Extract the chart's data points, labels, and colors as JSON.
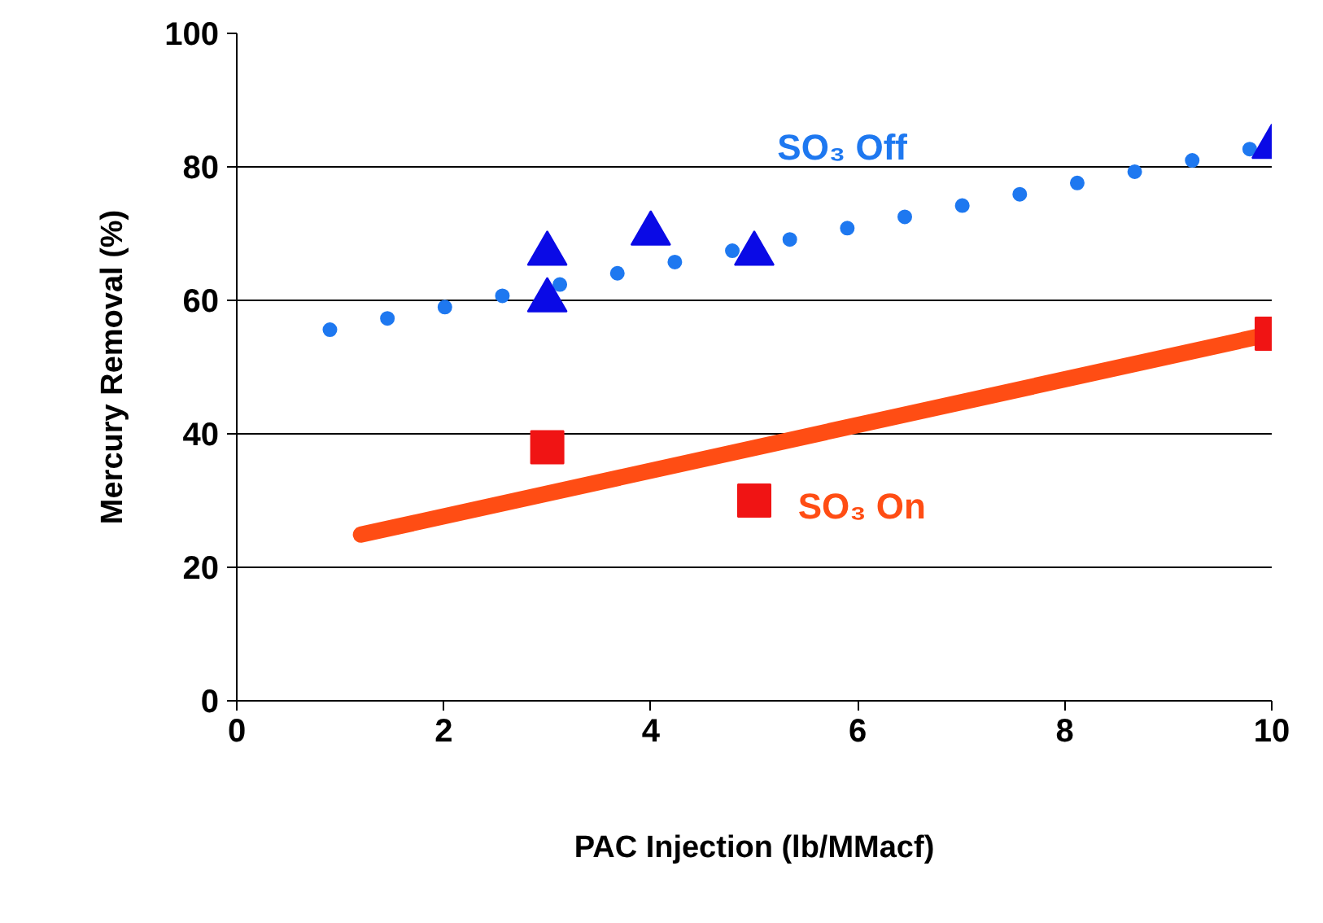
{
  "chart_data": {
    "type": "scatter",
    "xlabel": "PAC Injection (lb/MMacf)",
    "ylabel": "Mercury Removal (%)",
    "xlim": [
      0,
      10
    ],
    "xticks": [
      0,
      2,
      4,
      6,
      8,
      10
    ],
    "ylim": [
      0,
      100
    ],
    "yticks": [
      0,
      20,
      40,
      60,
      80,
      100
    ],
    "grid": "y",
    "series": [
      {
        "type": "line",
        "name": "SO₃ Off",
        "color": "#1e78f0",
        "line_style": "dotted",
        "x": [
          0.9,
          9.9
        ],
        "values": [
          55.6,
          83
        ]
      },
      {
        "type": "line",
        "name": "SO₃ On",
        "color": "#ff4d14",
        "line_style": "solid",
        "x": [
          1.2,
          10
        ],
        "values": [
          24.9,
          55
        ]
      },
      {
        "color": "#0a0ae6",
        "marker": "triangle",
        "x": [
          3,
          3,
          4,
          5,
          10
        ],
        "values": [
          67,
          60,
          70,
          67,
          83
        ]
      },
      {
        "color": "#f01414",
        "marker": "square",
        "x": [
          3,
          5,
          10
        ],
        "values": [
          38,
          30,
          55
        ]
      }
    ]
  }
}
